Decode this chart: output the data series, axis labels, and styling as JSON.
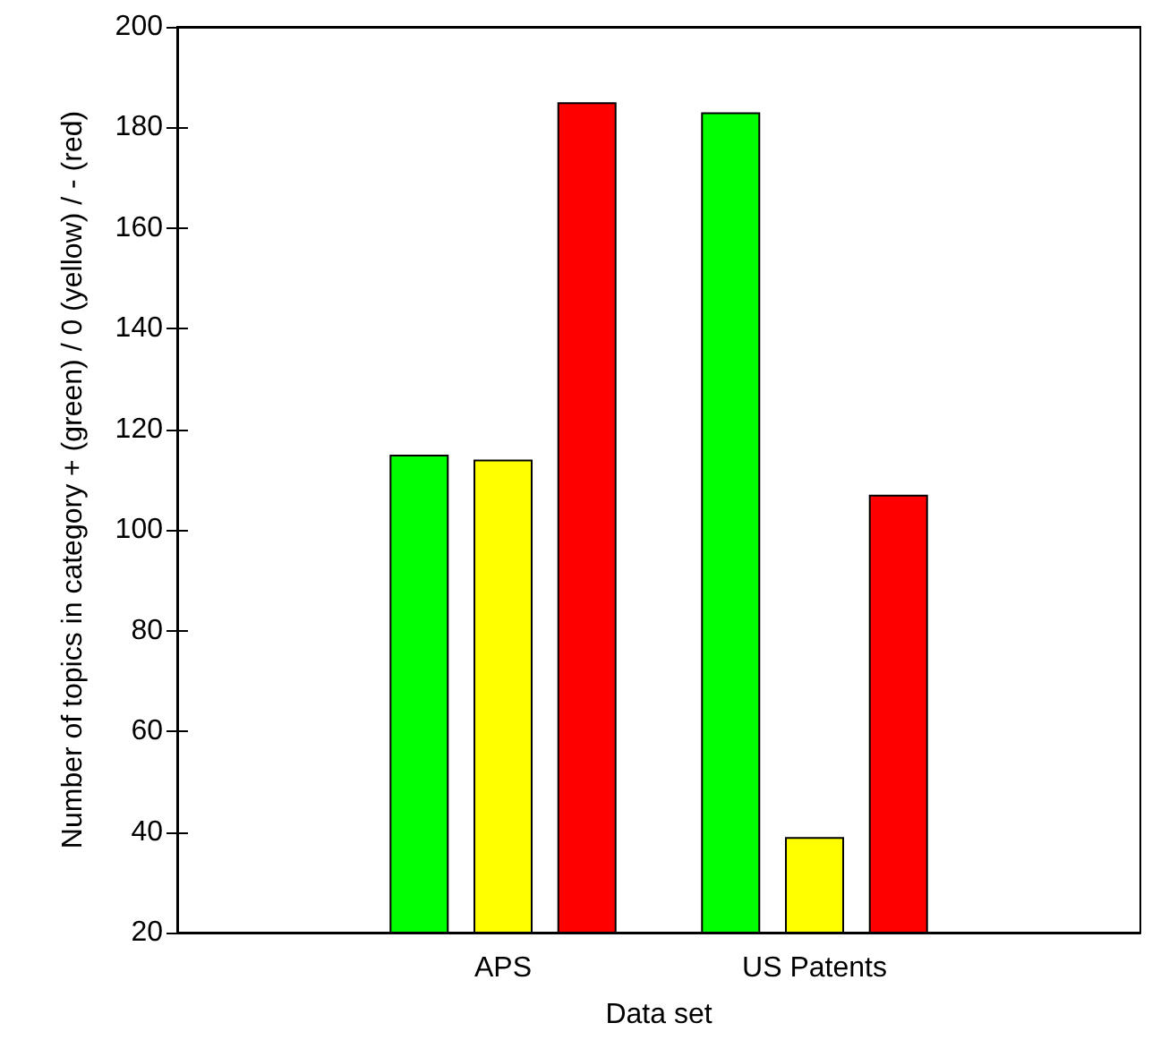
{
  "chart_data": {
    "type": "bar",
    "xlabel": "Data set",
    "ylabel": "Number of topics in category + (green) / 0 (yellow) / - (red)",
    "categories": [
      "APS",
      "US Patents"
    ],
    "series": [
      {
        "color": "#00ff00",
        "values": [
          115,
          183
        ]
      },
      {
        "color": "#ffff00",
        "values": [
          114,
          39
        ]
      },
      {
        "color": "#ff0000",
        "values": [
          185,
          107
        ]
      }
    ],
    "ylim": [
      20,
      200
    ],
    "yticks": [
      20,
      40,
      60,
      80,
      100,
      120,
      140,
      160,
      180,
      200
    ],
    "grid": false
  }
}
